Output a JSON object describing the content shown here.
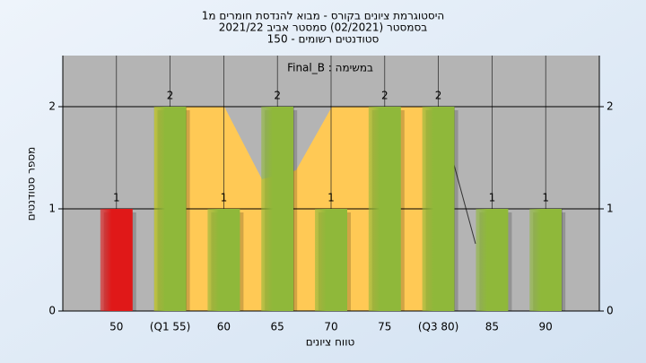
{
  "chart_data": {
    "type": "bar",
    "title": [
      "היסטוגרמת ציונים בקורס - מבוא להנדסת חומרים מ1",
      "בסמסטר  (02/2021)  סמסטר אביב 2021/22",
      "סטודנטים רשומים - 150"
    ],
    "legend": "Final_B : במשימה",
    "x_label": "טווח ציונים",
    "y_label": "מספר סטודנטים",
    "categories": [
      "50",
      "(Q1 55)",
      "60",
      "65",
      "70",
      "75",
      "(Q3 80)",
      "85",
      "90"
    ],
    "values": [
      1,
      2,
      1,
      2,
      1,
      2,
      2,
      1,
      1
    ],
    "colors": [
      "#e01818",
      "#8fb83a",
      "#8fb83a",
      "#8fb83a",
      "#8fb83a",
      "#8fb83a",
      "#8fb83a",
      "#8fb83a",
      "#8fb83a"
    ],
    "ylim": [
      0,
      2.5
    ],
    "yticks": [
      0,
      1,
      2
    ],
    "grid": true
  }
}
